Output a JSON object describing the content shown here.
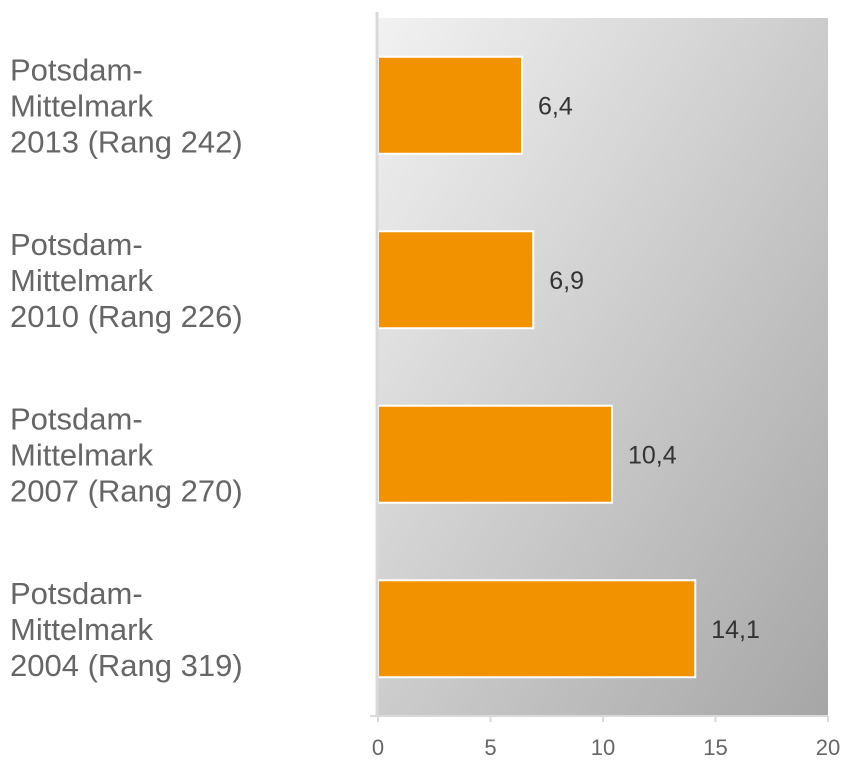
{
  "chart_data": {
    "type": "bar",
    "orientation": "horizontal",
    "categories": [
      [
        "Potsdam-",
        "Mittelmark",
        "2013 (Rang 242)"
      ],
      [
        "Potsdam-",
        "Mittelmark",
        "2010 (Rang 226)"
      ],
      [
        "Potsdam-",
        "Mittelmark",
        "2007 (Rang 270)"
      ],
      [
        "Potsdam-",
        "Mittelmark",
        "2004 (Rang 319)"
      ]
    ],
    "values": [
      6.4,
      6.9,
      10.4,
      14.1
    ],
    "value_labels": [
      "6,4",
      "6,9",
      "10,4",
      "14,1"
    ],
    "xlim": [
      0,
      20
    ],
    "xticks": [
      0,
      5,
      10,
      15,
      20
    ],
    "xtick_labels": [
      "0",
      "5",
      "10",
      "15",
      "20"
    ],
    "grid": false,
    "bar_color": "#f39200",
    "plot_background": [
      "#f2f2f2",
      "#a6a6a6"
    ]
  }
}
